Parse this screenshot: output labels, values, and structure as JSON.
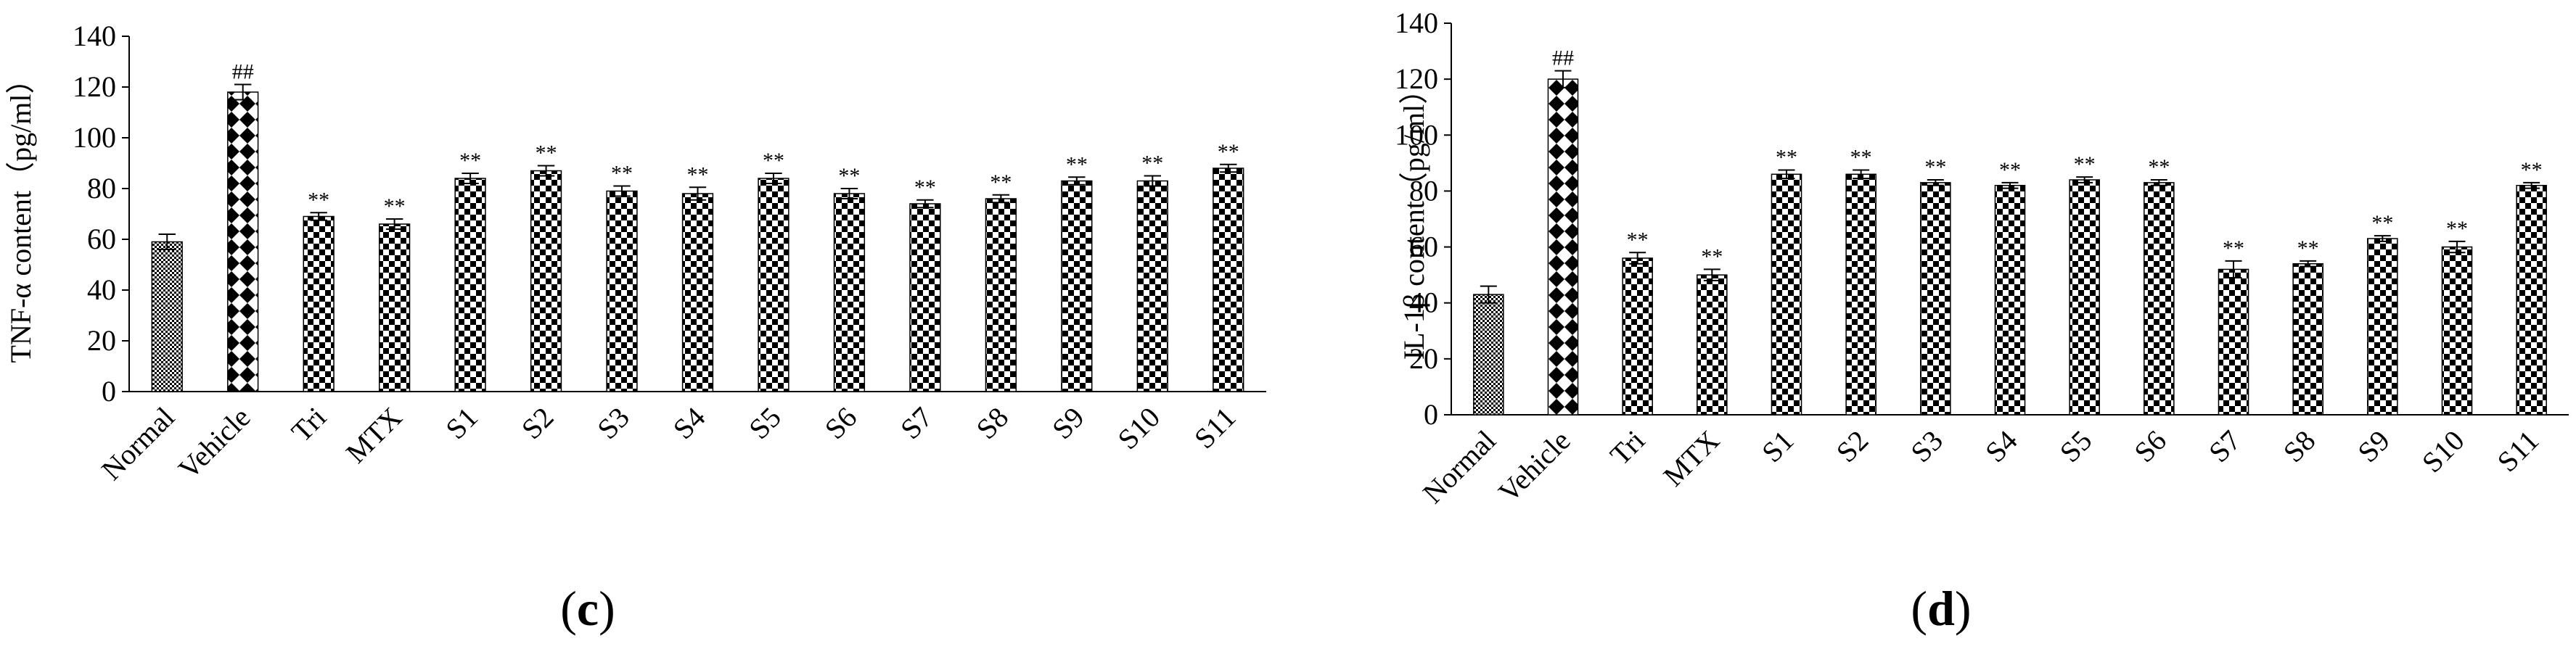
{
  "chart_data": [
    {
      "type": "bar",
      "panel_label": "c",
      "ylabel": "TNF-α content（pg/ml）",
      "ylim": [
        0,
        140
      ],
      "ytick_step": 20,
      "categories": [
        "Normal",
        "Vehicle",
        "Tri",
        "MTX",
        "S1",
        "S2",
        "S3",
        "S4",
        "S5",
        "S6",
        "S7",
        "S8",
        "S9",
        "S10",
        "S11"
      ],
      "values": [
        59,
        118,
        69,
        66,
        84,
        87,
        79,
        78,
        84,
        78,
        74,
        76,
        83,
        83,
        88
      ],
      "errors": [
        3,
        3,
        1.5,
        2,
        2,
        2,
        2,
        2.5,
        2,
        2,
        1.5,
        1.5,
        1.5,
        2,
        1.5
      ],
      "annotations": [
        "",
        "##",
        "**",
        "**",
        "**",
        "**",
        "**",
        "**",
        "**",
        "**",
        "**",
        "**",
        "**",
        "**",
        "**"
      ],
      "patterns": [
        "fine-check",
        "diamond",
        "check",
        "check",
        "check",
        "check",
        "check",
        "check",
        "check",
        "check",
        "check",
        "check",
        "check",
        "check",
        "check"
      ]
    },
    {
      "type": "bar",
      "panel_label": "d",
      "ylabel": "IL-1β content（pg/ml）",
      "ylim": [
        0,
        140
      ],
      "ytick_step": 20,
      "categories": [
        "Normal",
        "Vehicle",
        "Tri",
        "MTX",
        "S1",
        "S2",
        "S3",
        "S4",
        "S5",
        "S6",
        "S7",
        "S8",
        "S9",
        "S10",
        "S11"
      ],
      "values": [
        43,
        120,
        56,
        50,
        86,
        86,
        83,
        82,
        84,
        83,
        52,
        54,
        63,
        60,
        82
      ],
      "errors": [
        3,
        3,
        2,
        2,
        1.5,
        1.5,
        1,
        1,
        1,
        1,
        3,
        1,
        1,
        2,
        1
      ],
      "annotations": [
        "",
        "##",
        "**",
        "**",
        "**",
        "**",
        "**",
        "**",
        "**",
        "**",
        "**",
        "**",
        "**",
        "**",
        "**"
      ],
      "patterns": [
        "fine-check",
        "diamond",
        "check",
        "check",
        "check",
        "check",
        "check",
        "check",
        "check",
        "check",
        "check",
        "check",
        "check",
        "check",
        "check"
      ]
    }
  ]
}
